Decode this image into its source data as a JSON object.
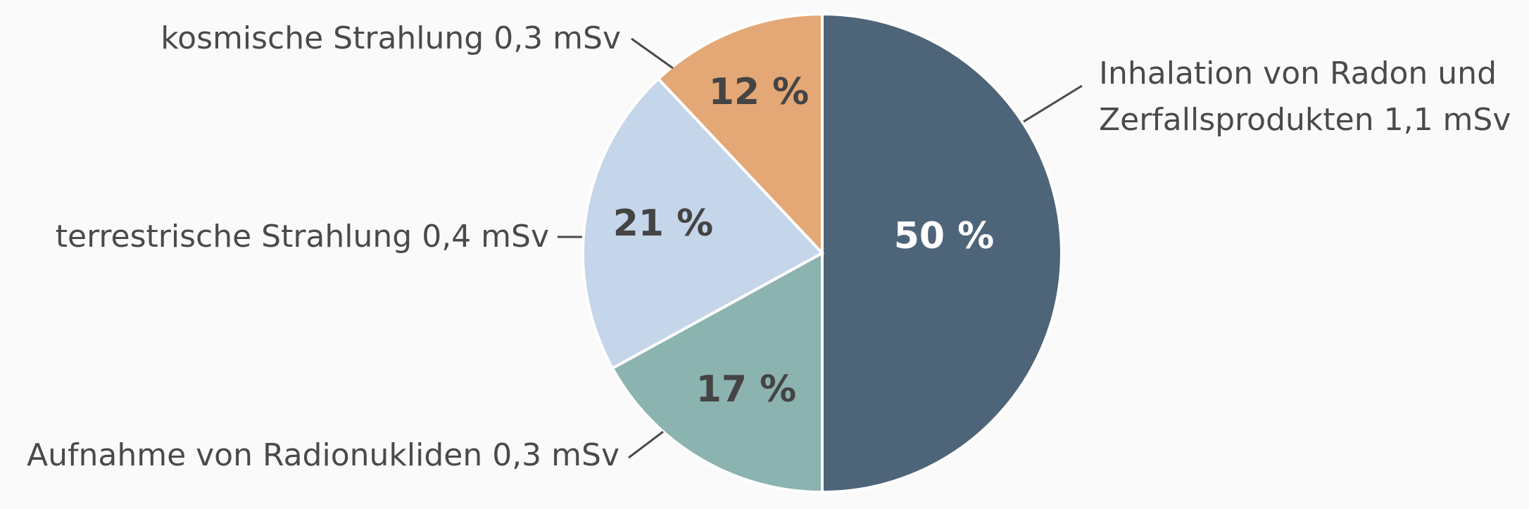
{
  "chart_data": {
    "type": "pie",
    "categories": [
      "Inhalation von Radon und Zerfallsprodukten 1,1 mSv",
      "Aufnahme von Radionukliden 0,3 mSv",
      "terrestrische Strahlung 0,4 mSv",
      "kosmische Strahlung 0,3 mSv"
    ],
    "values": [
      50,
      17,
      21,
      12
    ],
    "value_labels": [
      "50 %",
      "17 %",
      "21 %",
      "12 %"
    ],
    "colors": [
      "#4e6479",
      "#8bb3b0",
      "#c5d5ea",
      "#e3a876"
    ]
  }
}
